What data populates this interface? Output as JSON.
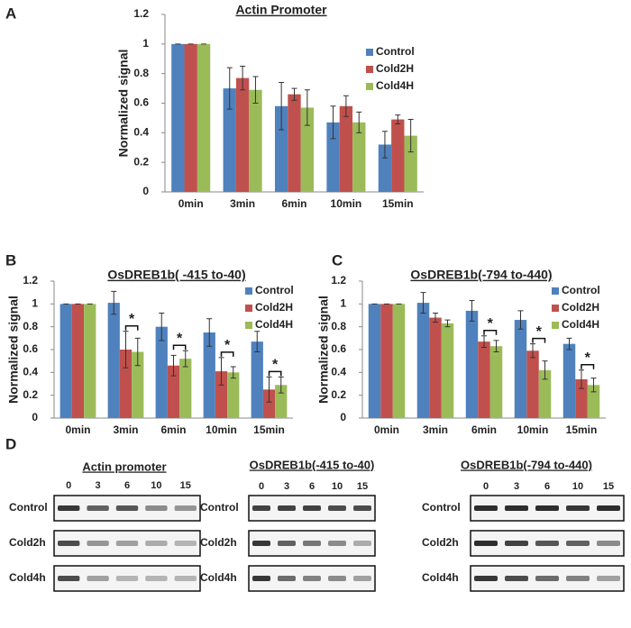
{
  "panels": [
    "A",
    "B",
    "C",
    "D"
  ],
  "chart_data": [
    {
      "type": "bar",
      "title": "Actin Promoter",
      "y_label": "Normalized signal",
      "categories": [
        "0min",
        "3min",
        "6min",
        "10min",
        "15min"
      ],
      "series": [
        {
          "name": "Control",
          "color": "#4f81bd",
          "values": [
            1,
            0.7,
            0.58,
            0.47,
            0.32
          ],
          "errors": [
            0,
            0.14,
            0.16,
            0.11,
            0.09
          ]
        },
        {
          "name": "Cold2H",
          "color": "#c0504d",
          "values": [
            1,
            0.77,
            0.66,
            0.58,
            0.49
          ],
          "errors": [
            0,
            0.08,
            0.04,
            0.07,
            0.03
          ]
        },
        {
          "name": "Cold4H",
          "color": "#9bbb59",
          "values": [
            1,
            0.69,
            0.57,
            0.47,
            0.38
          ],
          "errors": [
            0,
            0.09,
            0.12,
            0.07,
            0.11
          ]
        }
      ],
      "ylim": [
        0,
        1.2
      ],
      "yticks": [
        0,
        0.2,
        0.4,
        0.6,
        0.8,
        1,
        1.2
      ]
    },
    {
      "type": "bar",
      "title": "OsDREB1b( -415 to-40)",
      "y_label": "Normalized signal",
      "categories": [
        "0min",
        "3min",
        "6min",
        "10min",
        "15min"
      ],
      "series": [
        {
          "name": "Control",
          "color": "#4f81bd",
          "values": [
            1,
            1.01,
            0.8,
            0.75,
            0.67
          ],
          "errors": [
            0,
            0.1,
            0.12,
            0.12,
            0.09
          ]
        },
        {
          "name": "Cold2H",
          "color": "#c0504d",
          "values": [
            1,
            0.6,
            0.46,
            0.41,
            0.25
          ],
          "errors": [
            0,
            0.16,
            0.09,
            0.12,
            0.11
          ]
        },
        {
          "name": "Cold4H",
          "color": "#9bbb59",
          "values": [
            1,
            0.58,
            0.52,
            0.4,
            0.29
          ],
          "errors": [
            0,
            0.12,
            0.07,
            0.05,
            0.07
          ]
        }
      ],
      "significance": [
        null,
        "*",
        "*",
        "*",
        "*"
      ],
      "ylim": [
        0,
        1.2
      ],
      "yticks": [
        0,
        0.2,
        0.4,
        0.6,
        0.8,
        1,
        1.2
      ]
    },
    {
      "type": "bar",
      "title": "OsDREB1b(-794 to-440)",
      "y_label": "Normalized signal",
      "categories": [
        "0min",
        "3min",
        "6min",
        "10min",
        "15min"
      ],
      "series": [
        {
          "name": "Control",
          "color": "#4f81bd",
          "values": [
            1,
            1.01,
            0.94,
            0.86,
            0.65
          ],
          "errors": [
            0,
            0.09,
            0.09,
            0.08,
            0.05
          ]
        },
        {
          "name": "Cold2H",
          "color": "#c0504d",
          "values": [
            1,
            0.88,
            0.67,
            0.59,
            0.34
          ],
          "errors": [
            0,
            0.04,
            0.05,
            0.06,
            0.08
          ]
        },
        {
          "name": "Cold4H",
          "color": "#9bbb59",
          "values": [
            1,
            0.83,
            0.63,
            0.42,
            0.29
          ],
          "errors": [
            0,
            0.03,
            0.05,
            0.08,
            0.06
          ]
        }
      ],
      "significance": [
        null,
        null,
        "*",
        "*",
        "*"
      ],
      "ylim": [
        0,
        1.2
      ],
      "yticks": [
        0,
        0.2,
        0.4,
        0.6,
        0.8,
        1,
        1.2
      ]
    }
  ],
  "gels": [
    {
      "title": "Actin promoter",
      "lanes": [
        "0",
        "3",
        "6",
        "10",
        "15"
      ],
      "rows": [
        "Control",
        "Cold2h",
        "Cold4h"
      ]
    },
    {
      "title": "OsDREB1b(-415 to-40)",
      "lanes": [
        "0",
        "3",
        "6",
        "10",
        "15"
      ],
      "rows": [
        "Control",
        "Cold2h",
        "Cold4h"
      ]
    },
    {
      "title": "OsDREB1b(-794 to-440)",
      "lanes": [
        "0",
        "3",
        "6",
        "10",
        "15"
      ],
      "rows": [
        "Control",
        "Cold2h",
        "Cold4h"
      ]
    }
  ]
}
